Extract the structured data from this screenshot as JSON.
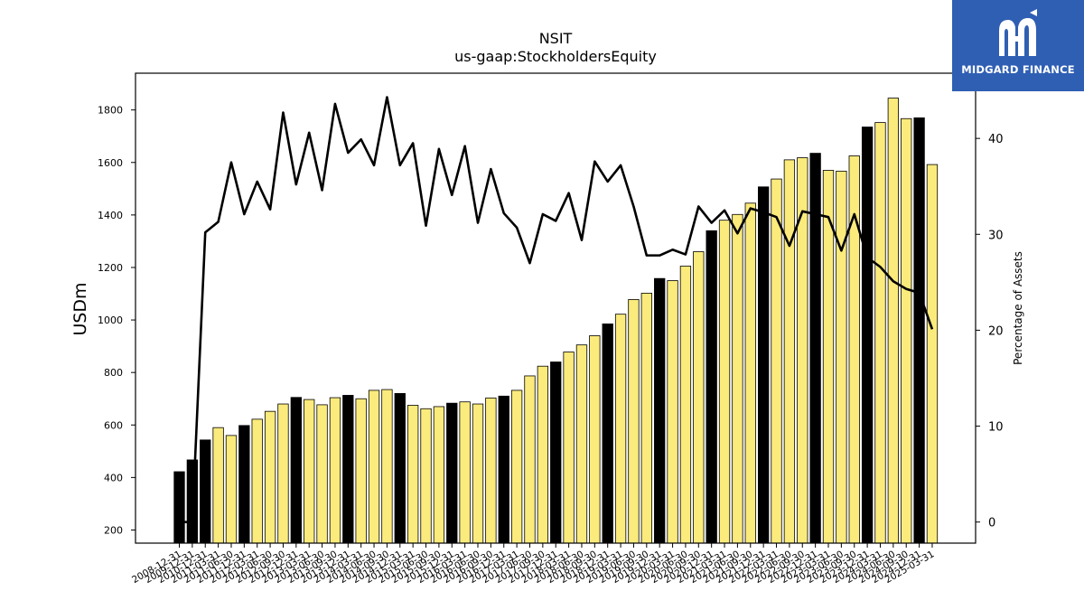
{
  "chart_data": {
    "type": "bar",
    "title": "NSIT",
    "subtitle": "us-gaap:StockholdersEquity",
    "ylabel": "USDm",
    "y2label": "Percentage of Assets",
    "ylim": [
      150,
      1940
    ],
    "y2lim": [
      -2.2,
      46.8
    ],
    "yticks": [
      200,
      400,
      600,
      800,
      1000,
      1200,
      1400,
      1600,
      1800
    ],
    "y2ticks": [
      0,
      10,
      20,
      30,
      40
    ],
    "categories": [
      "2008-12-31",
      "2009-12-31",
      "2010-12-31",
      "2011-03-31",
      "2011-06-30",
      "2011-12-31",
      "2012-03-31",
      "2012-06-30",
      "2012-09-30",
      "2012-12-31",
      "2013-03-31",
      "2013-06-30",
      "2013-09-30",
      "2013-12-31",
      "2014-03-31",
      "2014-06-30",
      "2014-09-30",
      "2014-12-31",
      "2015-03-31",
      "2015-06-30",
      "2015-09-30",
      "2015-12-31",
      "2016-03-31",
      "2016-06-30",
      "2016-09-30",
      "2016-12-31",
      "2017-03-31",
      "2017-06-30",
      "2017-09-30",
      "2017-12-31",
      "2018-03-31",
      "2018-06-30",
      "2018-09-30",
      "2018-12-31",
      "2019-03-31",
      "2019-06-30",
      "2019-09-30",
      "2019-12-31",
      "2020-03-31",
      "2020-06-30",
      "2020-09-30",
      "2020-12-31",
      "2021-03-31",
      "2021-06-30",
      "2021-09-30",
      "2021-12-31",
      "2022-03-31",
      "2022-06-30",
      "2022-09-30",
      "2022-12-31",
      "2023-03-31",
      "2023-06-30",
      "2023-09-30",
      "2023-12-31",
      "2024-03-31",
      "2024-06-30",
      "2024-09-30",
      "2024-12-31",
      "2025-03-31"
    ],
    "x_tick_labels": [
      "2008-12-31",
      "2009-12-31",
      "2010-12-31",
      "2011-03-31",
      "2011-06-30",
      "2011-12-31",
      "2012-03-31",
      "2012-06-30",
      "2012-09-30",
      "2012-12-31",
      "2013-03-31",
      "2013-06-30",
      "2013-09-30",
      "2013-12-31",
      "2014-03-31",
      "2014-06-30",
      "2014-09-30",
      "2014-12-31",
      "2015-03-31",
      "2015-06-30",
      "2015-09-30",
      "2015-12-31",
      "2016-03-31",
      "2016-06-30",
      "2016-09-30",
      "2016-12-31",
      "2017-03-31",
      "2017-06-30",
      "2017-09-30",
      "2017-12-31",
      "2018-03-31",
      "2018-06-30",
      "2018-09-30",
      "2018-12-31",
      "2019-03-31",
      "2019-06-30",
      "2019-09-30",
      "2019-12-31",
      "2020-03-31",
      "2020-06-30",
      "2020-09-30",
      "2020-12-31",
      "2021-03-31",
      "2021-06-30",
      "2021-09-30",
      "2021-12-31",
      "2022-03-31",
      "2022-06-30",
      "2022-09-30",
      "2022-12-31",
      "2023-03-31",
      "2023-06-30",
      "2023-09-30",
      "2023-12-31",
      "2024-03-31",
      "2024-06-30",
      "2024-09-30",
      "2024-12-31",
      "2025-03-31"
    ],
    "series": [
      {
        "type": "bar",
        "values": [
          422,
          467,
          543,
          590,
          560,
          598,
          622,
          652,
          680,
          705,
          697,
          677,
          704,
          713,
          700,
          732,
          735,
          720,
          675,
          662,
          670,
          683,
          688,
          680,
          703,
          710,
          732,
          787,
          824,
          840,
          878,
          905,
          940,
          985,
          1022,
          1078,
          1102,
          1158,
          1150,
          1205,
          1260,
          1340,
          1380,
          1402,
          1445,
          1507,
          1537,
          1610,
          1618,
          1635,
          1570,
          1567,
          1625,
          1735,
          1752,
          1845,
          1767,
          1770,
          1592
        ]
      },
      {
        "type": "line",
        "axis": "right",
        "values": [
          0,
          0,
          30.2,
          31.3,
          37.5,
          32.1,
          35.5,
          32.6,
          42.7,
          35.2,
          40.6,
          34.6,
          43.6,
          38.5,
          39.9,
          37.2,
          44.3,
          37.2,
          39.5,
          30.9,
          38.9,
          34.1,
          39.2,
          31.2,
          36.8,
          32.2,
          30.7,
          27.0,
          32.1,
          31.4,
          34.3,
          29.4,
          37.6,
          35.5,
          37.2,
          32.9,
          27.8,
          27.8,
          28.4,
          27.9,
          32.9,
          31.2,
          32.5,
          30.1,
          32.7,
          32.3,
          31.8,
          28.8,
          32.4,
          32.1,
          31.8,
          28.3,
          32.1,
          27.6,
          26.6,
          25.1,
          24.3,
          23.9,
          20.1
        ]
      }
    ],
    "bar_colors": {
      "annual": "#000000",
      "quarter": "#fbeb7c",
      "edge": "#000000",
      "line": "#000000"
    },
    "annual_flags": [
      1,
      1,
      1,
      0,
      0,
      1,
      0,
      0,
      0,
      1,
      0,
      0,
      0,
      1,
      0,
      0,
      0,
      1,
      0,
      0,
      0,
      1,
      0,
      0,
      0,
      1,
      0,
      0,
      0,
      1,
      0,
      0,
      0,
      1,
      0,
      0,
      0,
      1,
      0,
      0,
      0,
      1,
      0,
      0,
      0,
      1,
      0,
      0,
      0,
      1,
      0,
      0,
      0,
      1,
      0,
      0,
      0,
      1,
      0
    ],
    "grid": false,
    "legend": "none"
  },
  "logo": {
    "text": "MIDGARD FINANCE",
    "background": "#2f5fb3",
    "foreground": "#ffffff",
    "icon": "midgard-m-logo-icon"
  }
}
